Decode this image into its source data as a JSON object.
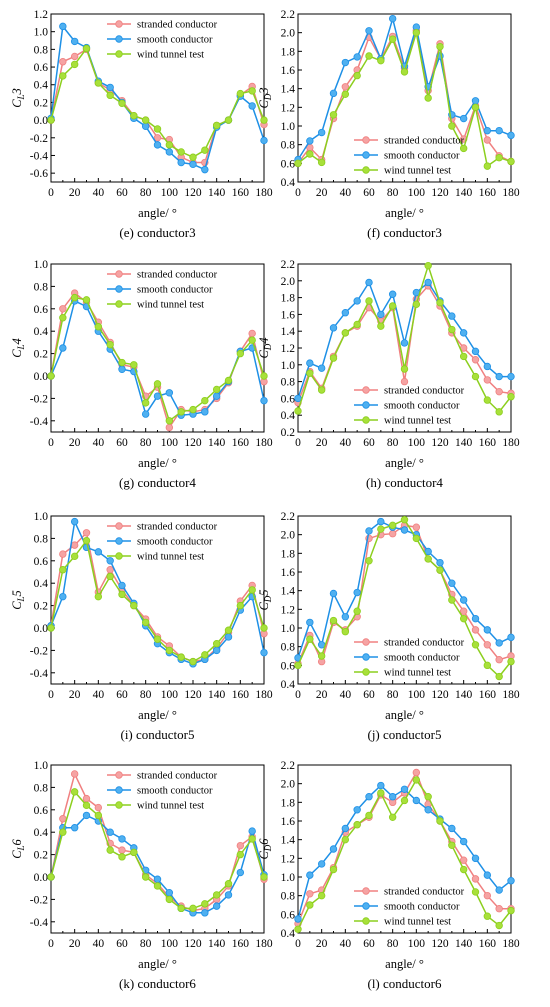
{
  "figure": {
    "series_styles": [
      {
        "name": "stranded conductor",
        "color": "#f08080",
        "marker_fill": "#f5a3a3"
      },
      {
        "name": "smooth conductor",
        "color": "#1e90e6",
        "marker_fill": "#4fb0f0"
      },
      {
        "name": "wind tunnel test",
        "color": "#8ccf1e",
        "marker_fill": "#a8e03a"
      }
    ]
  },
  "chart_data": [
    {
      "type": "line",
      "caption": "(e) conductor3",
      "ylabel_main": "C",
      "ylabel_sub": "L",
      "ylabel_num": "3",
      "xlabel": "angle/ °",
      "xlim": [
        0,
        180
      ],
      "ylim": [
        -0.7,
        1.2
      ],
      "xticks": [
        "0",
        "20",
        "40",
        "60",
        "80",
        "100",
        "120",
        "140",
        "160",
        "180"
      ],
      "yticks": [
        "-0.6",
        "-0.4",
        "-0.2",
        "0.0",
        "0.2",
        "0.4",
        "0.6",
        "0.8",
        "1.0",
        "1.2"
      ],
      "legend_position": "top-right",
      "x": [
        0,
        10,
        20,
        30,
        40,
        50,
        60,
        70,
        80,
        90,
        100,
        110,
        120,
        130,
        140,
        150,
        160,
        170,
        180
      ],
      "series": [
        {
          "name": "stranded conductor",
          "values": [
            0.0,
            0.66,
            0.72,
            0.8,
            0.42,
            0.34,
            0.22,
            0.05,
            0.0,
            -0.2,
            -0.22,
            -0.42,
            -0.48,
            -0.48,
            -0.06,
            0.0,
            0.28,
            0.38,
            -0.05
          ]
        },
        {
          "name": "smooth conductor",
          "values": [
            0.02,
            1.06,
            0.89,
            0.82,
            0.44,
            0.37,
            0.2,
            0.02,
            -0.07,
            -0.28,
            -0.36,
            -0.48,
            -0.5,
            -0.56,
            -0.08,
            0.0,
            0.27,
            0.16,
            -0.23
          ]
        },
        {
          "name": "wind tunnel test",
          "values": [
            0.0,
            0.5,
            0.63,
            0.81,
            0.42,
            0.28,
            0.19,
            0.05,
            0.0,
            -0.1,
            -0.28,
            -0.36,
            -0.42,
            -0.34,
            -0.06,
            0.0,
            0.3,
            0.33,
            0.0
          ]
        }
      ]
    },
    {
      "type": "line",
      "caption": "(f) conductor3",
      "ylabel_main": "C",
      "ylabel_sub": "D",
      "ylabel_num": "3",
      "xlabel": "angle/ °",
      "xlim": [
        0,
        180
      ],
      "ylim": [
        0.4,
        2.2
      ],
      "xticks": [
        "0",
        "20",
        "40",
        "60",
        "80",
        "100",
        "120",
        "140",
        "160",
        "180"
      ],
      "yticks": [
        "0.4",
        "0.6",
        "0.8",
        "1.0",
        "1.2",
        "1.4",
        "1.6",
        "1.8",
        "2.0",
        "2.2"
      ],
      "legend_position": "bottom-right",
      "x": [
        0,
        10,
        20,
        30,
        40,
        50,
        60,
        70,
        80,
        90,
        100,
        110,
        120,
        130,
        140,
        150,
        160,
        170,
        180
      ],
      "series": [
        {
          "name": "stranded conductor",
          "values": [
            0.6,
            0.77,
            0.64,
            1.08,
            1.42,
            1.6,
            1.95,
            1.72,
            1.96,
            1.62,
            2.02,
            1.38,
            1.88,
            1.08,
            0.86,
            1.22,
            0.85,
            0.68,
            0.62
          ]
        },
        {
          "name": "smooth conductor",
          "values": [
            0.64,
            0.84,
            0.93,
            1.35,
            1.68,
            1.74,
            2.02,
            1.72,
            2.15,
            1.64,
            2.06,
            1.42,
            1.75,
            1.12,
            1.08,
            1.27,
            0.95,
            0.95,
            0.9
          ]
        },
        {
          "name": "wind tunnel test",
          "values": [
            0.6,
            0.7,
            0.61,
            1.12,
            1.34,
            1.54,
            1.75,
            1.7,
            1.93,
            1.58,
            2.0,
            1.3,
            1.85,
            1.0,
            0.76,
            1.2,
            0.57,
            0.66,
            0.62
          ]
        }
      ]
    },
    {
      "type": "line",
      "caption": "(g) conductor4",
      "ylabel_main": "C",
      "ylabel_sub": "L",
      "ylabel_num": "4",
      "xlabel": "angle/ °",
      "xlim": [
        0,
        180
      ],
      "ylim": [
        -0.5,
        1.0
      ],
      "xticks": [
        "0",
        "20",
        "40",
        "60",
        "80",
        "100",
        "120",
        "140",
        "160",
        "180"
      ],
      "yticks": [
        "-0.4",
        "-0.2",
        "0.0",
        "0.2",
        "0.4",
        "0.6",
        "0.8",
        "1.0"
      ],
      "legend_position": "top-right",
      "x": [
        0,
        10,
        20,
        30,
        40,
        50,
        60,
        70,
        80,
        90,
        100,
        110,
        120,
        130,
        140,
        150,
        160,
        170,
        180
      ],
      "series": [
        {
          "name": "stranded conductor",
          "values": [
            0.0,
            0.6,
            0.74,
            0.66,
            0.48,
            0.3,
            0.1,
            0.08,
            -0.18,
            -0.1,
            -0.46,
            -0.3,
            -0.32,
            -0.3,
            -0.2,
            -0.06,
            0.22,
            0.38,
            -0.05
          ]
        },
        {
          "name": "smooth conductor",
          "values": [
            0.0,
            0.25,
            0.67,
            0.62,
            0.4,
            0.24,
            0.06,
            0.04,
            -0.34,
            -0.18,
            -0.15,
            -0.35,
            -0.34,
            -0.32,
            -0.18,
            -0.05,
            0.22,
            0.25,
            -0.22
          ]
        },
        {
          "name": "wind tunnel test",
          "values": [
            0.0,
            0.52,
            0.7,
            0.68,
            0.44,
            0.28,
            0.12,
            0.1,
            -0.24,
            -0.07,
            -0.4,
            -0.32,
            -0.3,
            -0.22,
            -0.12,
            -0.04,
            0.2,
            0.32,
            0.0
          ]
        }
      ]
    },
    {
      "type": "line",
      "caption": "(h) conductor4",
      "ylabel_main": "C",
      "ylabel_sub": "D",
      "ylabel_num": "4",
      "xlabel": "angle/ °",
      "xlim": [
        0,
        180
      ],
      "ylim": [
        0.2,
        2.2
      ],
      "xticks": [
        "0",
        "20",
        "40",
        "60",
        "80",
        "100",
        "120",
        "140",
        "160",
        "180"
      ],
      "yticks": [
        "0.2",
        "0.4",
        "0.6",
        "0.8",
        "1.0",
        "1.2",
        "1.4",
        "1.6",
        "1.8",
        "2.0",
        "2.2"
      ],
      "legend_position": "bottom-right",
      "x": [
        0,
        10,
        20,
        30,
        40,
        50,
        60,
        70,
        80,
        90,
        100,
        110,
        120,
        130,
        140,
        150,
        160,
        170,
        180
      ],
      "series": [
        {
          "name": "stranded conductor",
          "values": [
            0.55,
            0.92,
            0.72,
            1.1,
            1.38,
            1.46,
            1.68,
            1.52,
            1.68,
            0.8,
            1.78,
            1.94,
            1.7,
            1.38,
            1.2,
            1.06,
            0.82,
            0.68,
            0.66
          ]
        },
        {
          "name": "smooth conductor",
          "values": [
            0.6,
            1.02,
            0.96,
            1.44,
            1.62,
            1.76,
            1.98,
            1.6,
            1.84,
            1.26,
            1.86,
            1.98,
            1.76,
            1.58,
            1.38,
            1.16,
            0.98,
            0.86,
            0.86
          ]
        },
        {
          "name": "wind tunnel test",
          "values": [
            0.45,
            0.9,
            0.7,
            1.08,
            1.38,
            1.48,
            1.76,
            1.46,
            1.7,
            0.95,
            1.72,
            2.18,
            1.74,
            1.42,
            1.1,
            0.86,
            0.58,
            0.44,
            0.62
          ]
        }
      ]
    },
    {
      "type": "line",
      "caption": "(i) conductor5",
      "ylabel_main": "C",
      "ylabel_sub": "L",
      "ylabel_num": "5",
      "xlabel": "angle/ °",
      "xlim": [
        0,
        180
      ],
      "ylim": [
        -0.5,
        1.0
      ],
      "xticks": [
        "0",
        "20",
        "40",
        "60",
        "80",
        "100",
        "120",
        "140",
        "160",
        "180"
      ],
      "yticks": [
        "-0.4",
        "-0.2",
        "0.0",
        "0.2",
        "0.4",
        "0.6",
        "0.8",
        "1.0"
      ],
      "legend_position": "top-right",
      "x": [
        0,
        10,
        20,
        30,
        40,
        50,
        60,
        70,
        80,
        90,
        100,
        110,
        120,
        130,
        140,
        150,
        160,
        170,
        180
      ],
      "series": [
        {
          "name": "stranded conductor",
          "values": [
            0.02,
            0.66,
            0.74,
            0.85,
            0.32,
            0.52,
            0.34,
            0.2,
            0.08,
            -0.08,
            -0.16,
            -0.26,
            -0.3,
            -0.28,
            -0.18,
            -0.04,
            0.24,
            0.38,
            -0.05
          ]
        },
        {
          "name": "smooth conductor",
          "values": [
            0.02,
            0.28,
            0.95,
            0.72,
            0.68,
            0.6,
            0.38,
            0.22,
            0.02,
            -0.14,
            -0.22,
            -0.28,
            -0.32,
            -0.28,
            -0.2,
            -0.08,
            0.16,
            0.28,
            -0.22
          ]
        },
        {
          "name": "wind tunnel test",
          "values": [
            0.0,
            0.52,
            0.64,
            0.78,
            0.28,
            0.46,
            0.3,
            0.2,
            0.05,
            -0.1,
            -0.2,
            -0.26,
            -0.3,
            -0.24,
            -0.14,
            -0.02,
            0.2,
            0.34,
            0.0
          ]
        }
      ]
    },
    {
      "type": "line",
      "caption": "(j) conductor5",
      "ylabel_main": "C",
      "ylabel_sub": "D",
      "ylabel_num": "5",
      "xlabel": "angle/ °",
      "xlim": [
        0,
        180
      ],
      "ylim": [
        0.4,
        2.2
      ],
      "xticks": [
        "0",
        "20",
        "40",
        "60",
        "80",
        "100",
        "120",
        "140",
        "160",
        "180"
      ],
      "yticks": [
        "0.4",
        "0.6",
        "0.8",
        "1.0",
        "1.2",
        "1.4",
        "1.6",
        "1.8",
        "2.0",
        "2.2"
      ],
      "legend_position": "bottom-right",
      "x": [
        0,
        10,
        20,
        30,
        40,
        50,
        60,
        70,
        80,
        90,
        100,
        110,
        120,
        130,
        140,
        150,
        160,
        170,
        180
      ],
      "series": [
        {
          "name": "stranded conductor",
          "values": [
            0.62,
            0.92,
            0.64,
            1.06,
            0.98,
            1.12,
            1.96,
            2.0,
            2.01,
            2.1,
            2.08,
            1.74,
            1.62,
            1.36,
            1.18,
            0.98,
            0.82,
            0.66,
            0.7
          ]
        },
        {
          "name": "smooth conductor",
          "values": [
            0.68,
            1.06,
            0.82,
            1.37,
            1.12,
            1.38,
            2.04,
            2.14,
            2.08,
            2.05,
            2.0,
            1.82,
            1.7,
            1.48,
            1.3,
            1.1,
            0.98,
            0.84,
            0.9
          ]
        },
        {
          "name": "wind tunnel test",
          "values": [
            0.6,
            0.88,
            0.7,
            1.08,
            0.96,
            1.18,
            1.72,
            2.06,
            2.1,
            2.16,
            1.96,
            1.74,
            1.62,
            1.3,
            1.1,
            0.82,
            0.6,
            0.48,
            0.64
          ]
        }
      ]
    },
    {
      "type": "line",
      "caption": "(k) conductor6",
      "ylabel_main": "C",
      "ylabel_sub": "L",
      "ylabel_num": "6",
      "xlabel": "angle/ °",
      "xlim": [
        0,
        180
      ],
      "ylim": [
        -0.5,
        1.0
      ],
      "xticks": [
        "0",
        "20",
        "40",
        "60",
        "80",
        "100",
        "120",
        "140",
        "160",
        "180"
      ],
      "yticks": [
        "-0.4",
        "-0.2",
        "0.0",
        "0.2",
        "0.4",
        "0.6",
        "0.8",
        "1.0"
      ],
      "legend_position": "top-right",
      "x": [
        0,
        10,
        20,
        30,
        40,
        50,
        60,
        70,
        80,
        90,
        100,
        110,
        120,
        130,
        140,
        150,
        160,
        170,
        180
      ],
      "series": [
        {
          "name": "stranded conductor",
          "values": [
            0.0,
            0.52,
            0.92,
            0.7,
            0.62,
            0.3,
            0.24,
            0.22,
            0.02,
            -0.06,
            -0.18,
            -0.26,
            -0.3,
            -0.28,
            -0.2,
            -0.08,
            0.28,
            0.36,
            -0.02
          ]
        },
        {
          "name": "smooth conductor",
          "values": [
            0.0,
            0.44,
            0.44,
            0.55,
            0.5,
            0.4,
            0.34,
            0.26,
            0.06,
            -0.02,
            -0.14,
            -0.28,
            -0.32,
            -0.32,
            -0.26,
            -0.16,
            0.04,
            0.41,
            0.02
          ]
        },
        {
          "name": "wind tunnel test",
          "values": [
            0.0,
            0.4,
            0.76,
            0.64,
            0.55,
            0.24,
            0.18,
            0.22,
            0.0,
            -0.08,
            -0.2,
            -0.28,
            -0.28,
            -0.24,
            -0.16,
            -0.06,
            0.2,
            0.34,
            0.0
          ]
        }
      ]
    },
    {
      "type": "line",
      "caption": "(l) conductor6",
      "ylabel_main": "C",
      "ylabel_sub": "D",
      "ylabel_num": "6",
      "xlabel": "angle/ °",
      "xlim": [
        0,
        180
      ],
      "ylim": [
        0.4,
        2.2
      ],
      "xticks": [
        "0",
        "20",
        "40",
        "60",
        "80",
        "100",
        "120",
        "140",
        "160",
        "180"
      ],
      "yticks": [
        "0.4",
        "0.6",
        "0.8",
        "1.0",
        "1.2",
        "1.4",
        "1.6",
        "1.8",
        "2.0",
        "2.2"
      ],
      "legend_position": "bottom-right",
      "x": [
        0,
        10,
        20,
        30,
        40,
        50,
        60,
        70,
        80,
        90,
        100,
        110,
        120,
        130,
        140,
        150,
        160,
        170,
        180
      ],
      "series": [
        {
          "name": "stranded conductor",
          "values": [
            0.5,
            0.82,
            0.86,
            1.1,
            1.48,
            1.56,
            1.64,
            1.88,
            1.8,
            1.9,
            2.12,
            1.78,
            1.6,
            1.38,
            1.18,
            0.98,
            0.8,
            0.66,
            0.66
          ]
        },
        {
          "name": "smooth conductor",
          "values": [
            0.55,
            1.02,
            1.14,
            1.3,
            1.52,
            1.72,
            1.86,
            1.98,
            1.86,
            1.94,
            1.82,
            1.72,
            1.62,
            1.52,
            1.38,
            1.2,
            1.02,
            0.86,
            0.96
          ]
        },
        {
          "name": "wind tunnel test",
          "values": [
            0.44,
            0.7,
            0.8,
            1.08,
            1.4,
            1.56,
            1.66,
            1.9,
            1.64,
            1.82,
            2.04,
            1.86,
            1.6,
            1.34,
            1.08,
            0.84,
            0.58,
            0.48,
            0.64
          ]
        }
      ]
    }
  ]
}
